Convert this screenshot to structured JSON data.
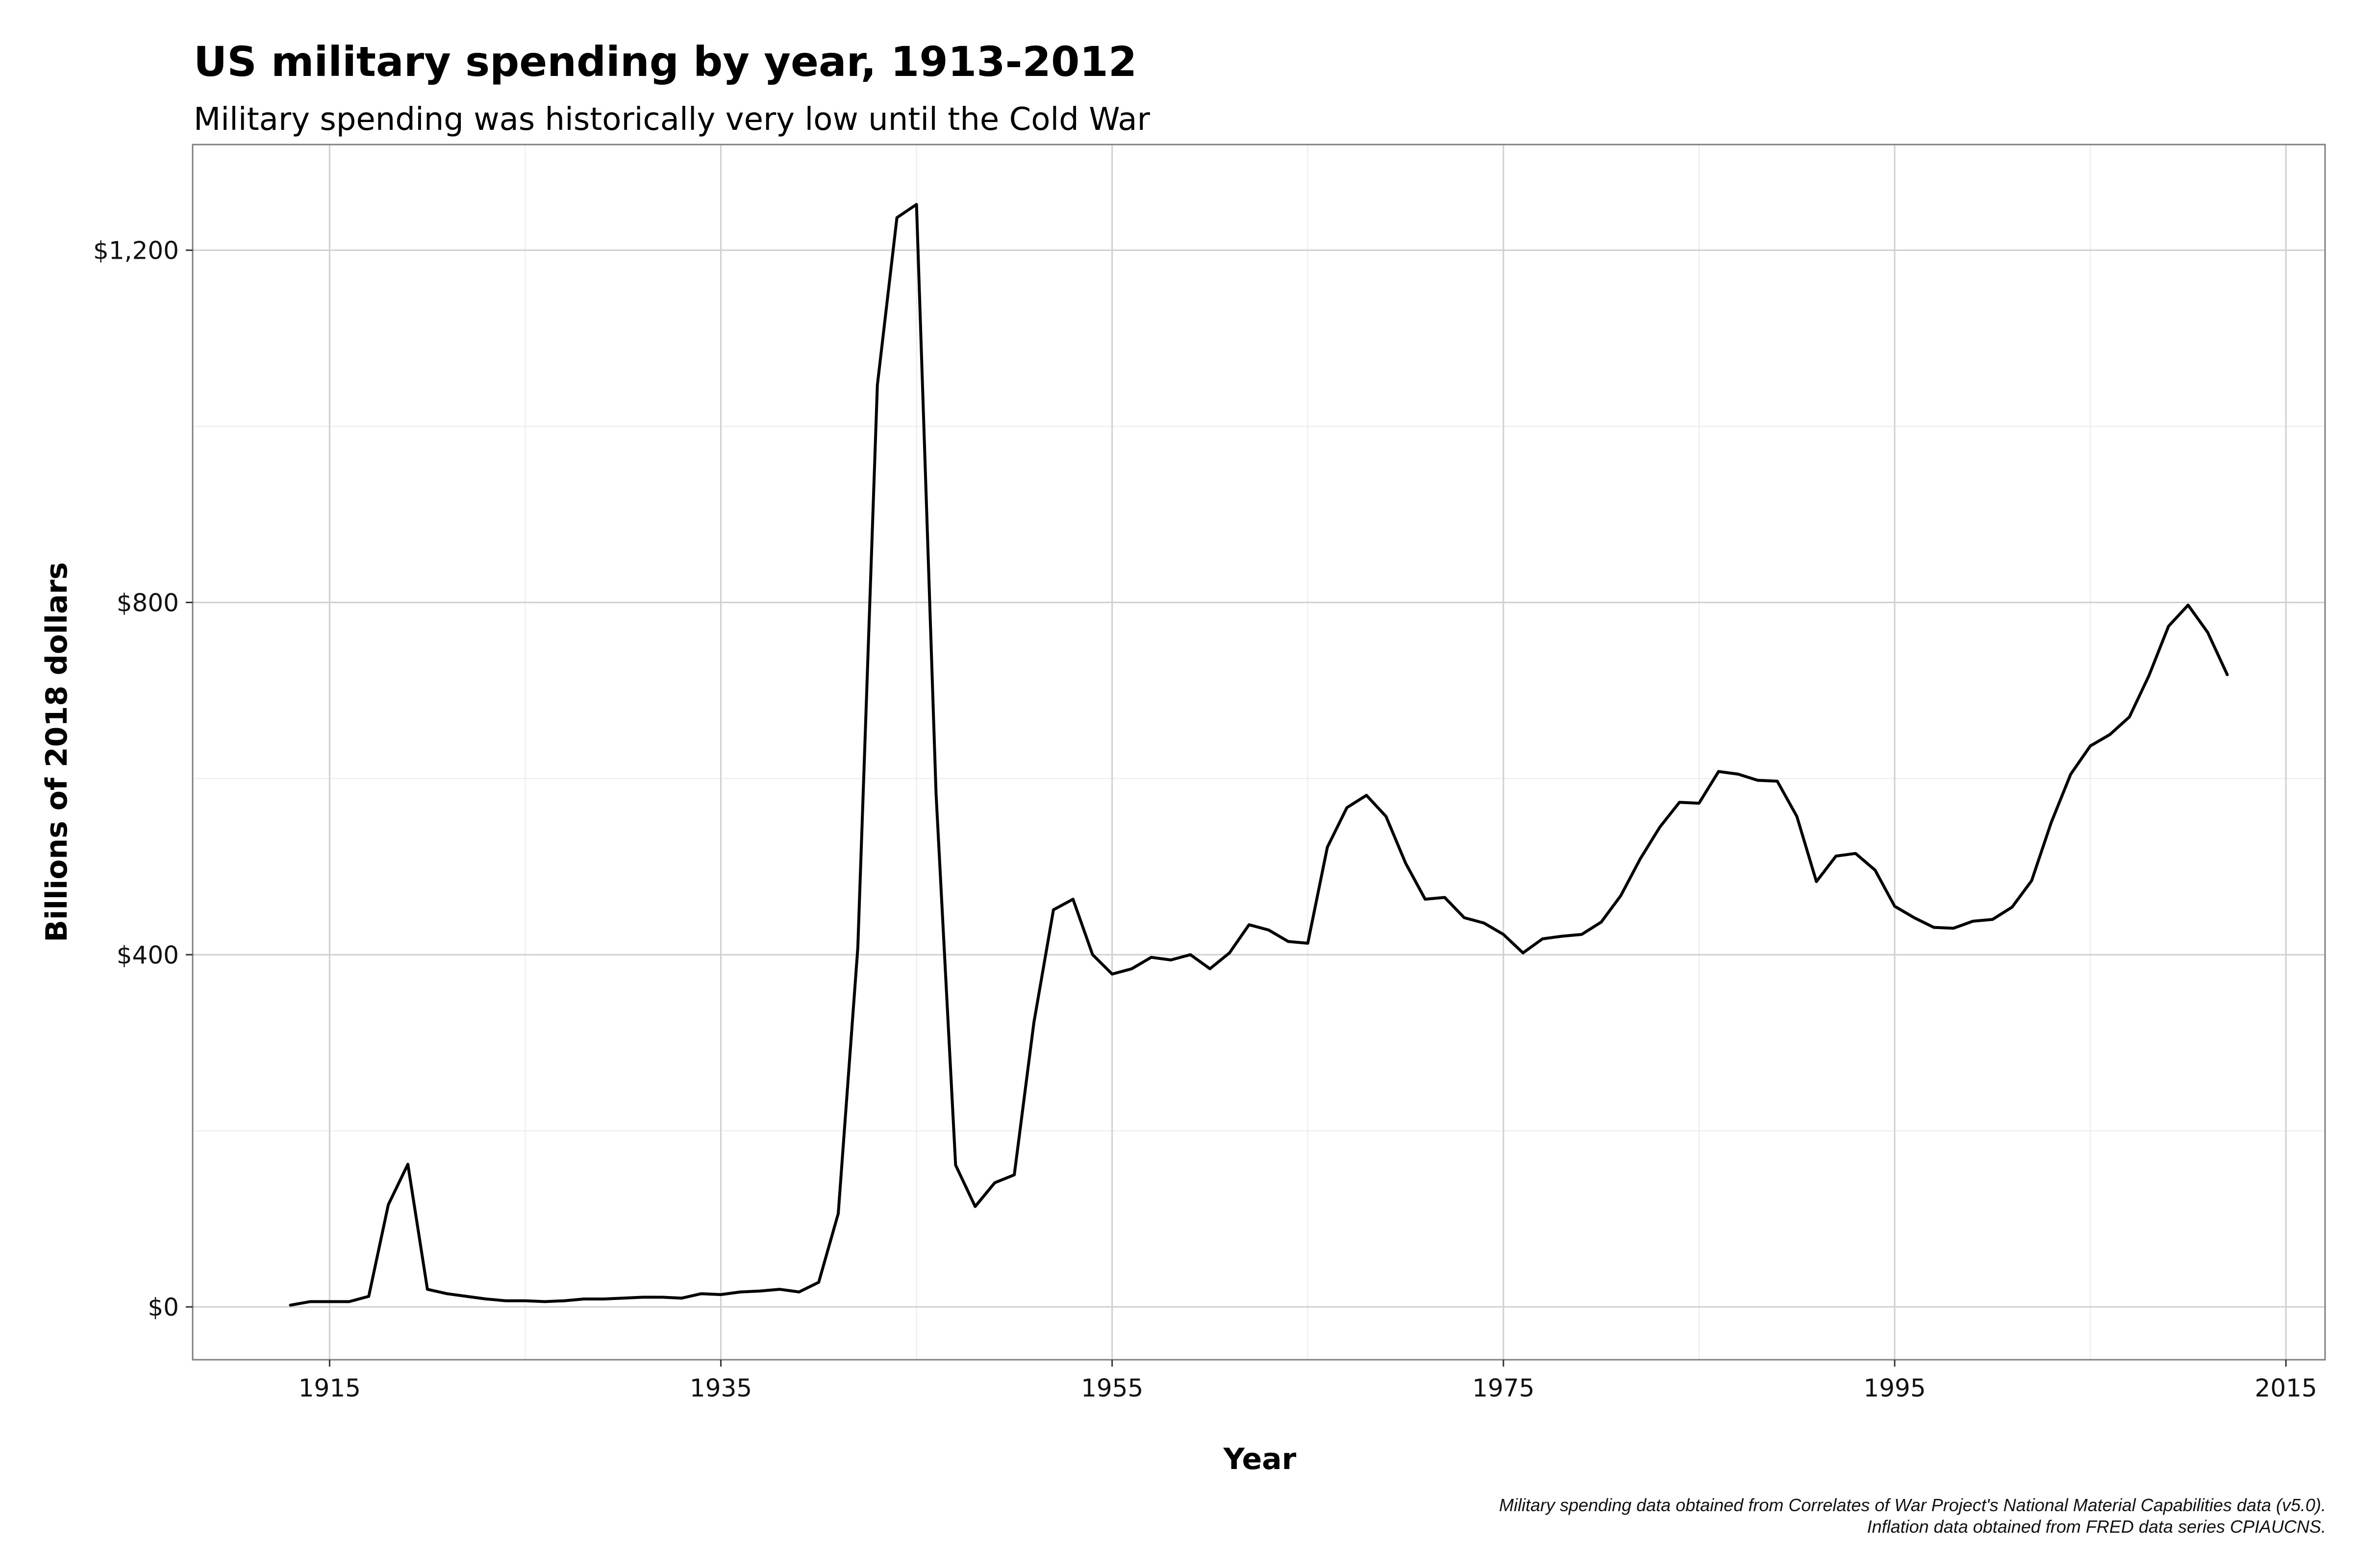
{
  "chart_data": {
    "type": "line",
    "title": "US military spending by year, 1913-2012",
    "subtitle": "Military spending was historically very low until the Cold War",
    "xlabel": "Year",
    "ylabel": "Billions of 2018 dollars",
    "xlim": [
      1908,
      2017
    ],
    "ylim": [
      -60,
      1320
    ],
    "x_major_ticks": [
      1915,
      1935,
      1955,
      1975,
      1995,
      2015
    ],
    "x_tick_labels": [
      "1915",
      "1935",
      "1955",
      "1975",
      "1995",
      "2015"
    ],
    "y_major_ticks": [
      0,
      400,
      800,
      1200
    ],
    "y_tick_labels": [
      "$0",
      "$400",
      "$800",
      "$1,200"
    ],
    "x_minor_ticks": [
      1925,
      1945,
      1965,
      1985,
      2005
    ],
    "y_minor_ticks": [
      200,
      600,
      1000
    ],
    "grid": true,
    "caption": [
      "Military spending data obtained from Correlates of War Project's National Material Capabilities data (v5.0).",
      "Inflation data obtained from FRED data series CPIAUCNS."
    ],
    "series": [
      {
        "name": "Military spending",
        "color": "#000000",
        "x": [
          1913,
          1914,
          1915,
          1916,
          1917,
          1918,
          1919,
          1920,
          1921,
          1922,
          1923,
          1924,
          1925,
          1926,
          1927,
          1928,
          1929,
          1930,
          1931,
          1932,
          1933,
          1934,
          1935,
          1936,
          1937,
          1938,
          1939,
          1940,
          1941,
          1942,
          1943,
          1944,
          1945,
          1946,
          1947,
          1948,
          1949,
          1950,
          1951,
          1952,
          1953,
          1954,
          1955,
          1956,
          1957,
          1958,
          1959,
          1960,
          1961,
          1962,
          1963,
          1964,
          1965,
          1966,
          1967,
          1968,
          1969,
          1970,
          1971,
          1972,
          1973,
          1974,
          1975,
          1976,
          1977,
          1978,
          1979,
          1980,
          1981,
          1982,
          1983,
          1984,
          1985,
          1986,
          1987,
          1988,
          1989,
          1990,
          1991,
          1992,
          1993,
          1994,
          1995,
          1996,
          1997,
          1998,
          1999,
          2000,
          2001,
          2002,
          2003,
          2004,
          2005,
          2006,
          2007,
          2008,
          2009,
          2010,
          2011,
          2012
        ],
        "values": [
          2,
          6,
          6,
          6,
          12,
          116,
          162,
          20,
          15,
          12,
          9,
          7,
          7,
          6,
          7,
          9,
          9,
          10,
          11,
          11,
          10,
          15,
          14,
          17,
          18,
          20,
          17,
          28,
          106,
          408,
          1047,
          1237,
          1252,
          583,
          161,
          114,
          141,
          150,
          323,
          451,
          463,
          400,
          378,
          384,
          397,
          394,
          400,
          384,
          402,
          434,
          428,
          415,
          413,
          522,
          567,
          581,
          557,
          504,
          463,
          465,
          442,
          436,
          423,
          402,
          418,
          421,
          423,
          437,
          467,
          509,
          545,
          573,
          572,
          608,
          605,
          598,
          597,
          557,
          483,
          512,
          515,
          496,
          455,
          442,
          431,
          430,
          438,
          440,
          454,
          484,
          550,
          605,
          637,
          650,
          670,
          717,
          773,
          797,
          766,
          718
        ]
      }
    ]
  }
}
